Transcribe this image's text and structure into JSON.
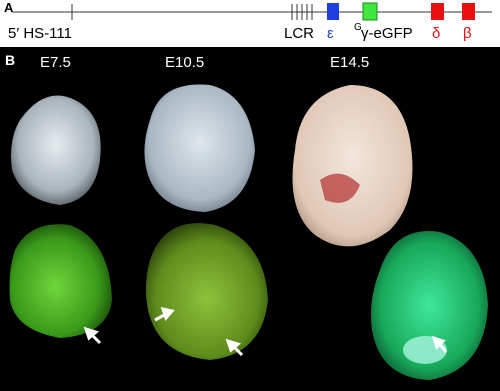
{
  "panel_a": {
    "label": "A",
    "hs_label": "5′ HS-111",
    "lcr_label": "LCR",
    "genes": [
      {
        "label": "ε"
      },
      {
        "superscript": "G",
        "label": "γ-eGFP"
      },
      {
        "label": "δ"
      },
      {
        "label": "β"
      }
    ]
  },
  "panel_b": {
    "label": "B",
    "stages": [
      "E7.5",
      "E10.5",
      "E14.5"
    ]
  }
}
